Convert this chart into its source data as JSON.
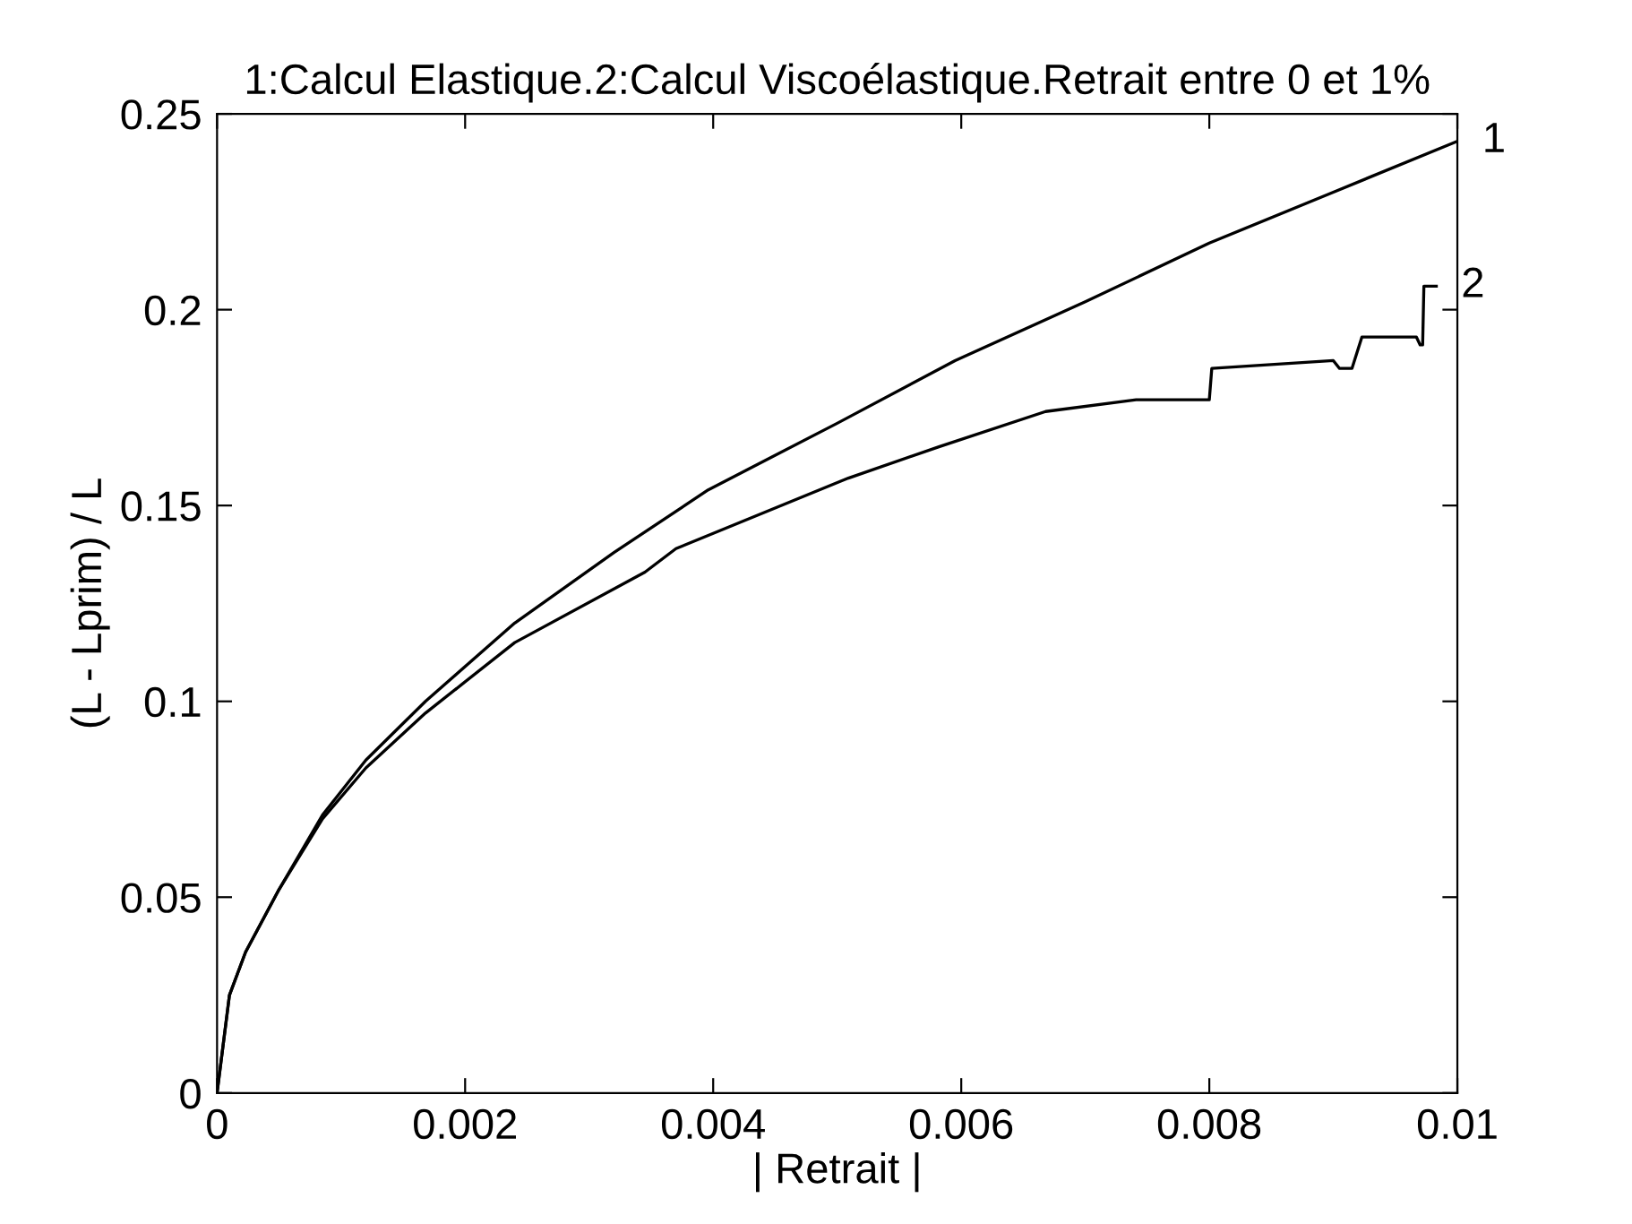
{
  "chart_data": {
    "type": "line",
    "title": "1:Calcul Elastique.2:Calcul Viscoélastique.Retrait entre 0 et 1%",
    "xlabel": "| Retrait |",
    "ylabel": "(L - Lprim) / L",
    "xlim": [
      0,
      0.01
    ],
    "ylim": [
      0,
      0.25
    ],
    "xticks": [
      0,
      0.002,
      0.004,
      0.006,
      0.008,
      0.01
    ],
    "yticks": [
      0,
      0.05,
      0.1,
      0.15,
      0.2,
      0.25
    ],
    "grid": false,
    "legend": "right",
    "line_style": "solid",
    "marker": "none",
    "series": [
      {
        "name": "1",
        "color": "#000000",
        "x": [
          0,
          0.0001,
          0.00023,
          0.0005,
          0.00085,
          0.0012,
          0.00168,
          0.0024,
          0.0032,
          0.00396,
          0.005,
          0.00595,
          0.007,
          0.008,
          0.009,
          0.01
        ],
        "values": [
          0,
          0.025,
          0.036,
          0.052,
          0.071,
          0.085,
          0.1,
          0.12,
          0.138,
          0.154,
          0.171,
          0.187,
          0.202,
          0.217,
          0.23,
          0.243
        ]
      },
      {
        "name": "2",
        "color": "#000000",
        "x": [
          0,
          0.0001,
          0.00023,
          0.0005,
          0.00085,
          0.0012,
          0.00168,
          0.0024,
          0.00345,
          0.0037,
          0.00509,
          0.00582,
          0.00668,
          0.00741,
          0.008,
          0.00802,
          0.009,
          0.00905,
          0.00915,
          0.00923,
          0.00967,
          0.0097,
          0.00972,
          0.00973,
          0.00983
        ],
        "values": [
          0,
          0.025,
          0.036,
          0.052,
          0.07,
          0.083,
          0.097,
          0.115,
          0.133,
          0.139,
          0.157,
          0.165,
          0.174,
          0.177,
          0.177,
          0.185,
          0.187,
          0.185,
          0.185,
          0.193,
          0.193,
          0.191,
          0.191,
          0.206,
          0.206
        ]
      }
    ]
  }
}
